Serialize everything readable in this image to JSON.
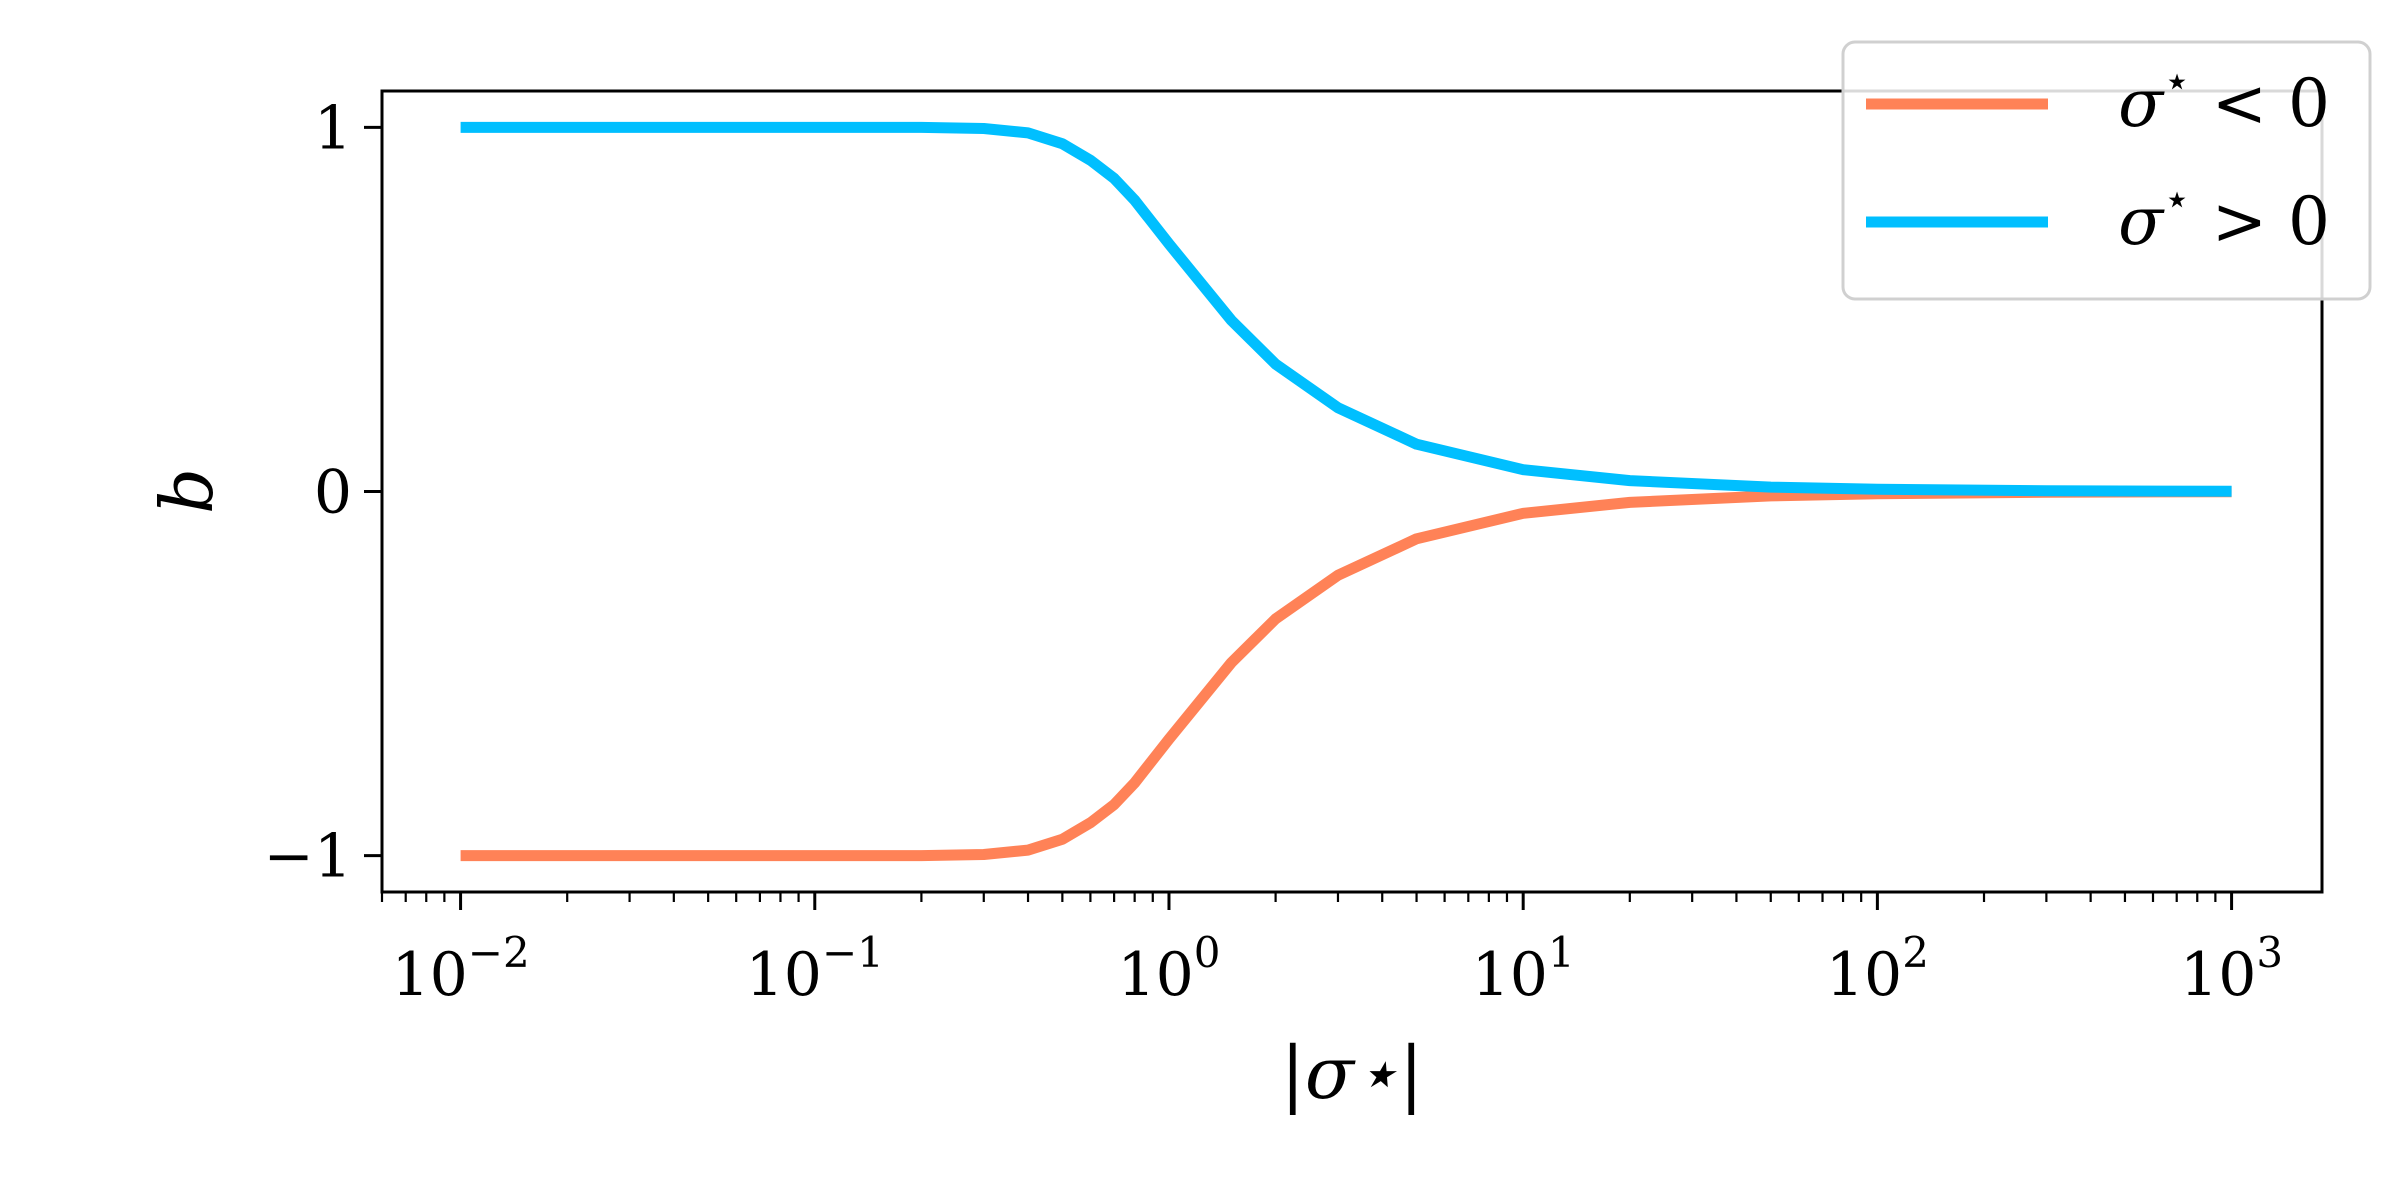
{
  "chart_data": {
    "type": "line",
    "title": "",
    "xlabel": "|σ⋆|",
    "ylabel": "b",
    "xscale": "log",
    "xlim": [
      0.006,
      1800
    ],
    "ylim": [
      -1.1,
      1.1
    ],
    "grid": false,
    "legend_position": "top-right",
    "x_ticks": [
      {
        "value": 0.01,
        "label": "10−2"
      },
      {
        "value": 0.1,
        "label": "10−1"
      },
      {
        "value": 1,
        "label": "100"
      },
      {
        "value": 10,
        "label": "101"
      },
      {
        "value": 100,
        "label": "102"
      },
      {
        "value": 1000,
        "label": "103"
      }
    ],
    "x_tick_labels": [
      {
        "base": "10",
        "exp": "−2"
      },
      {
        "base": "10",
        "exp": "−1"
      },
      {
        "base": "10",
        "exp": "0"
      },
      {
        "base": "10",
        "exp": "1"
      },
      {
        "base": "10",
        "exp": "2"
      },
      {
        "base": "10",
        "exp": "3"
      }
    ],
    "y_ticks": [
      {
        "value": 1,
        "label": "1"
      },
      {
        "value": 0,
        "label": "0"
      },
      {
        "value": -1,
        "label": "−1"
      }
    ],
    "series": [
      {
        "name": "σ⋆ < 0",
        "color": "#ff8257",
        "points": [
          [
            0.01,
            -1.0
          ],
          [
            0.1,
            -1.0
          ],
          [
            0.2,
            -1.0
          ],
          [
            0.3,
            -0.997
          ],
          [
            0.4,
            -0.985
          ],
          [
            0.5,
            -0.955
          ],
          [
            0.6,
            -0.91
          ],
          [
            0.7,
            -0.86
          ],
          [
            0.8,
            -0.8
          ],
          [
            1,
            -0.68
          ],
          [
            1.5,
            -0.47
          ],
          [
            2,
            -0.35
          ],
          [
            3,
            -0.23
          ],
          [
            5,
            -0.13
          ],
          [
            10,
            -0.06
          ],
          [
            20,
            -0.03
          ],
          [
            50,
            -0.012
          ],
          [
            100,
            -0.006
          ],
          [
            300,
            -0.002
          ],
          [
            1000,
            -0.0006
          ]
        ]
      },
      {
        "name": "σ⋆ > 0",
        "color": "#00bfff",
        "points": [
          [
            0.01,
            1.0
          ],
          [
            0.1,
            1.0
          ],
          [
            0.2,
            1.0
          ],
          [
            0.3,
            0.997
          ],
          [
            0.4,
            0.985
          ],
          [
            0.5,
            0.955
          ],
          [
            0.6,
            0.91
          ],
          [
            0.7,
            0.86
          ],
          [
            0.8,
            0.8
          ],
          [
            1,
            0.68
          ],
          [
            1.5,
            0.47
          ],
          [
            2,
            0.35
          ],
          [
            3,
            0.23
          ],
          [
            5,
            0.13
          ],
          [
            10,
            0.06
          ],
          [
            20,
            0.03
          ],
          [
            50,
            0.012
          ],
          [
            100,
            0.006
          ],
          [
            300,
            0.002
          ],
          [
            1000,
            0.0006
          ]
        ]
      }
    ],
    "legend": [
      {
        "base": "σ",
        "sup": "⋆",
        "rel": " < 0"
      },
      {
        "base": "σ",
        "sup": "⋆",
        "rel": " > 0"
      }
    ]
  }
}
